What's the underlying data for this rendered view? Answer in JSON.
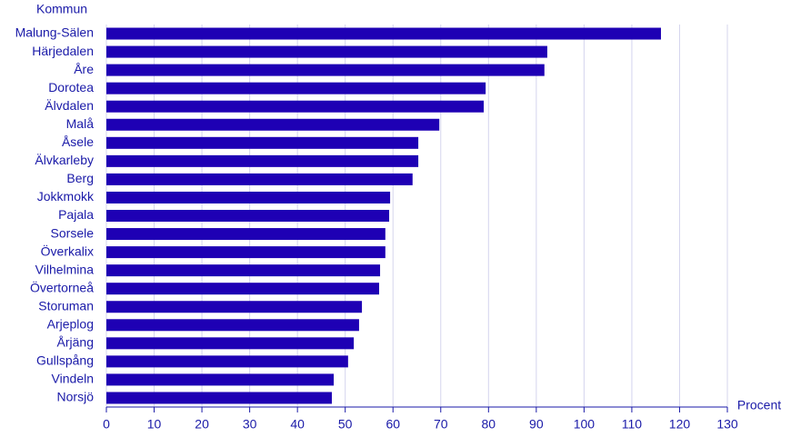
{
  "chart_data": {
    "type": "hbar",
    "y_label": "Kommun",
    "x_label": "Procent",
    "categories": [
      "Malung-Sälen",
      "Härjedalen",
      "Åre",
      "Dorotea",
      "Älvdalen",
      "Malå",
      "Åsele",
      "Älvkarleby",
      "Berg",
      "Jokkmokk",
      "Pajala",
      "Sorsele",
      "Överkalix",
      "Vilhelmina",
      "Övertorneå",
      "Storuman",
      "Arjeplog",
      "Årjäng",
      "Gullspång",
      "Vindeln",
      "Norsjö"
    ],
    "values": [
      116.1,
      92.3,
      91.7,
      79.4,
      79.0,
      69.7,
      65.3,
      65.3,
      64.1,
      59.4,
      59.2,
      58.4,
      58.4,
      57.3,
      57.1,
      53.5,
      52.9,
      51.8,
      50.6,
      47.6,
      47.2
    ],
    "color": "#1e00b4",
    "xlim": [
      0,
      130
    ],
    "xticks": [
      0,
      10,
      20,
      30,
      40,
      50,
      60,
      70,
      80,
      90,
      100,
      110,
      120,
      130
    ],
    "grid": true
  }
}
